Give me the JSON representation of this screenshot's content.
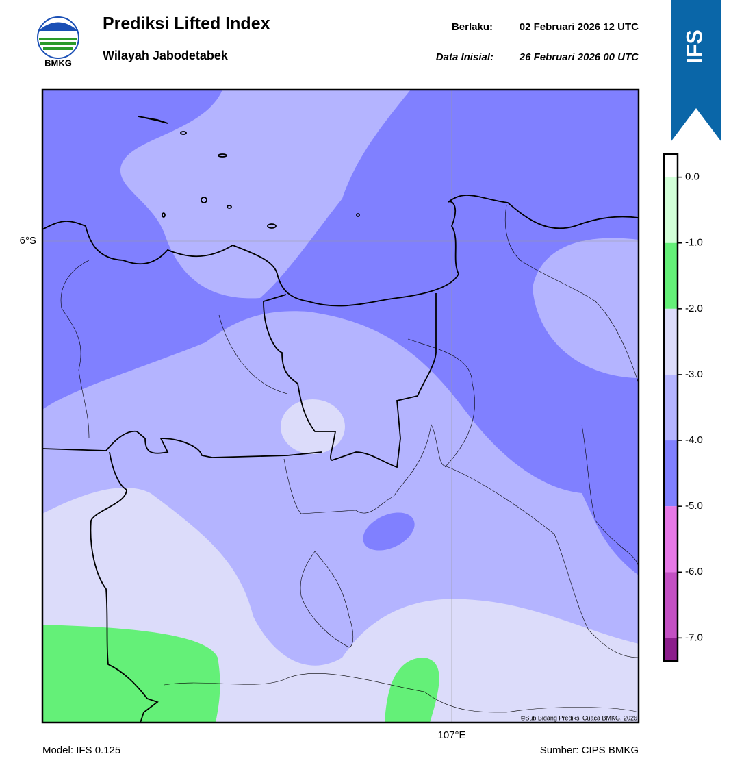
{
  "header": {
    "title": "Prediksi Lifted Index",
    "subtitle": "Wilayah Jabodetabek",
    "valid_label": "Berlaku:",
    "valid": "02 Februari 2026 12 UTC",
    "init_label": "Data Inisial:",
    "init": "26 Februari 2026 00 UTC",
    "logo": "BMKG",
    "badge": "IFS"
  },
  "map": {
    "lat_label": "6°S",
    "lon_label": "107°E",
    "credit": "©Sub Bidang Prediksi Cuaca BMKG, 2026"
  },
  "colorbar": {
    "lim": [
      -7.35,
      0.35
    ],
    "ticks": [
      {
        "value": 0,
        "label": "0.0"
      },
      {
        "value": -1,
        "label": "-1.0"
      },
      {
        "value": -2,
        "label": "-2.0"
      },
      {
        "value": -3,
        "label": "-3.0"
      },
      {
        "value": -4,
        "label": "-4.0"
      },
      {
        "value": -5,
        "label": "-5.0"
      },
      {
        "value": -6,
        "label": "-6.0"
      },
      {
        "value": -7,
        "label": "-7.0"
      }
    ],
    "colors": [
      "#ffffff",
      "#d2ffd8",
      "#64f078",
      "#dcdcfa",
      "#b4b4ff",
      "#8080ff",
      "#e678e6",
      "#c350c3",
      "#8c1e8c"
    ]
  },
  "footer": {
    "model": "Model: IFS 0.125",
    "source": "Sumber: CIPS BMKG"
  }
}
